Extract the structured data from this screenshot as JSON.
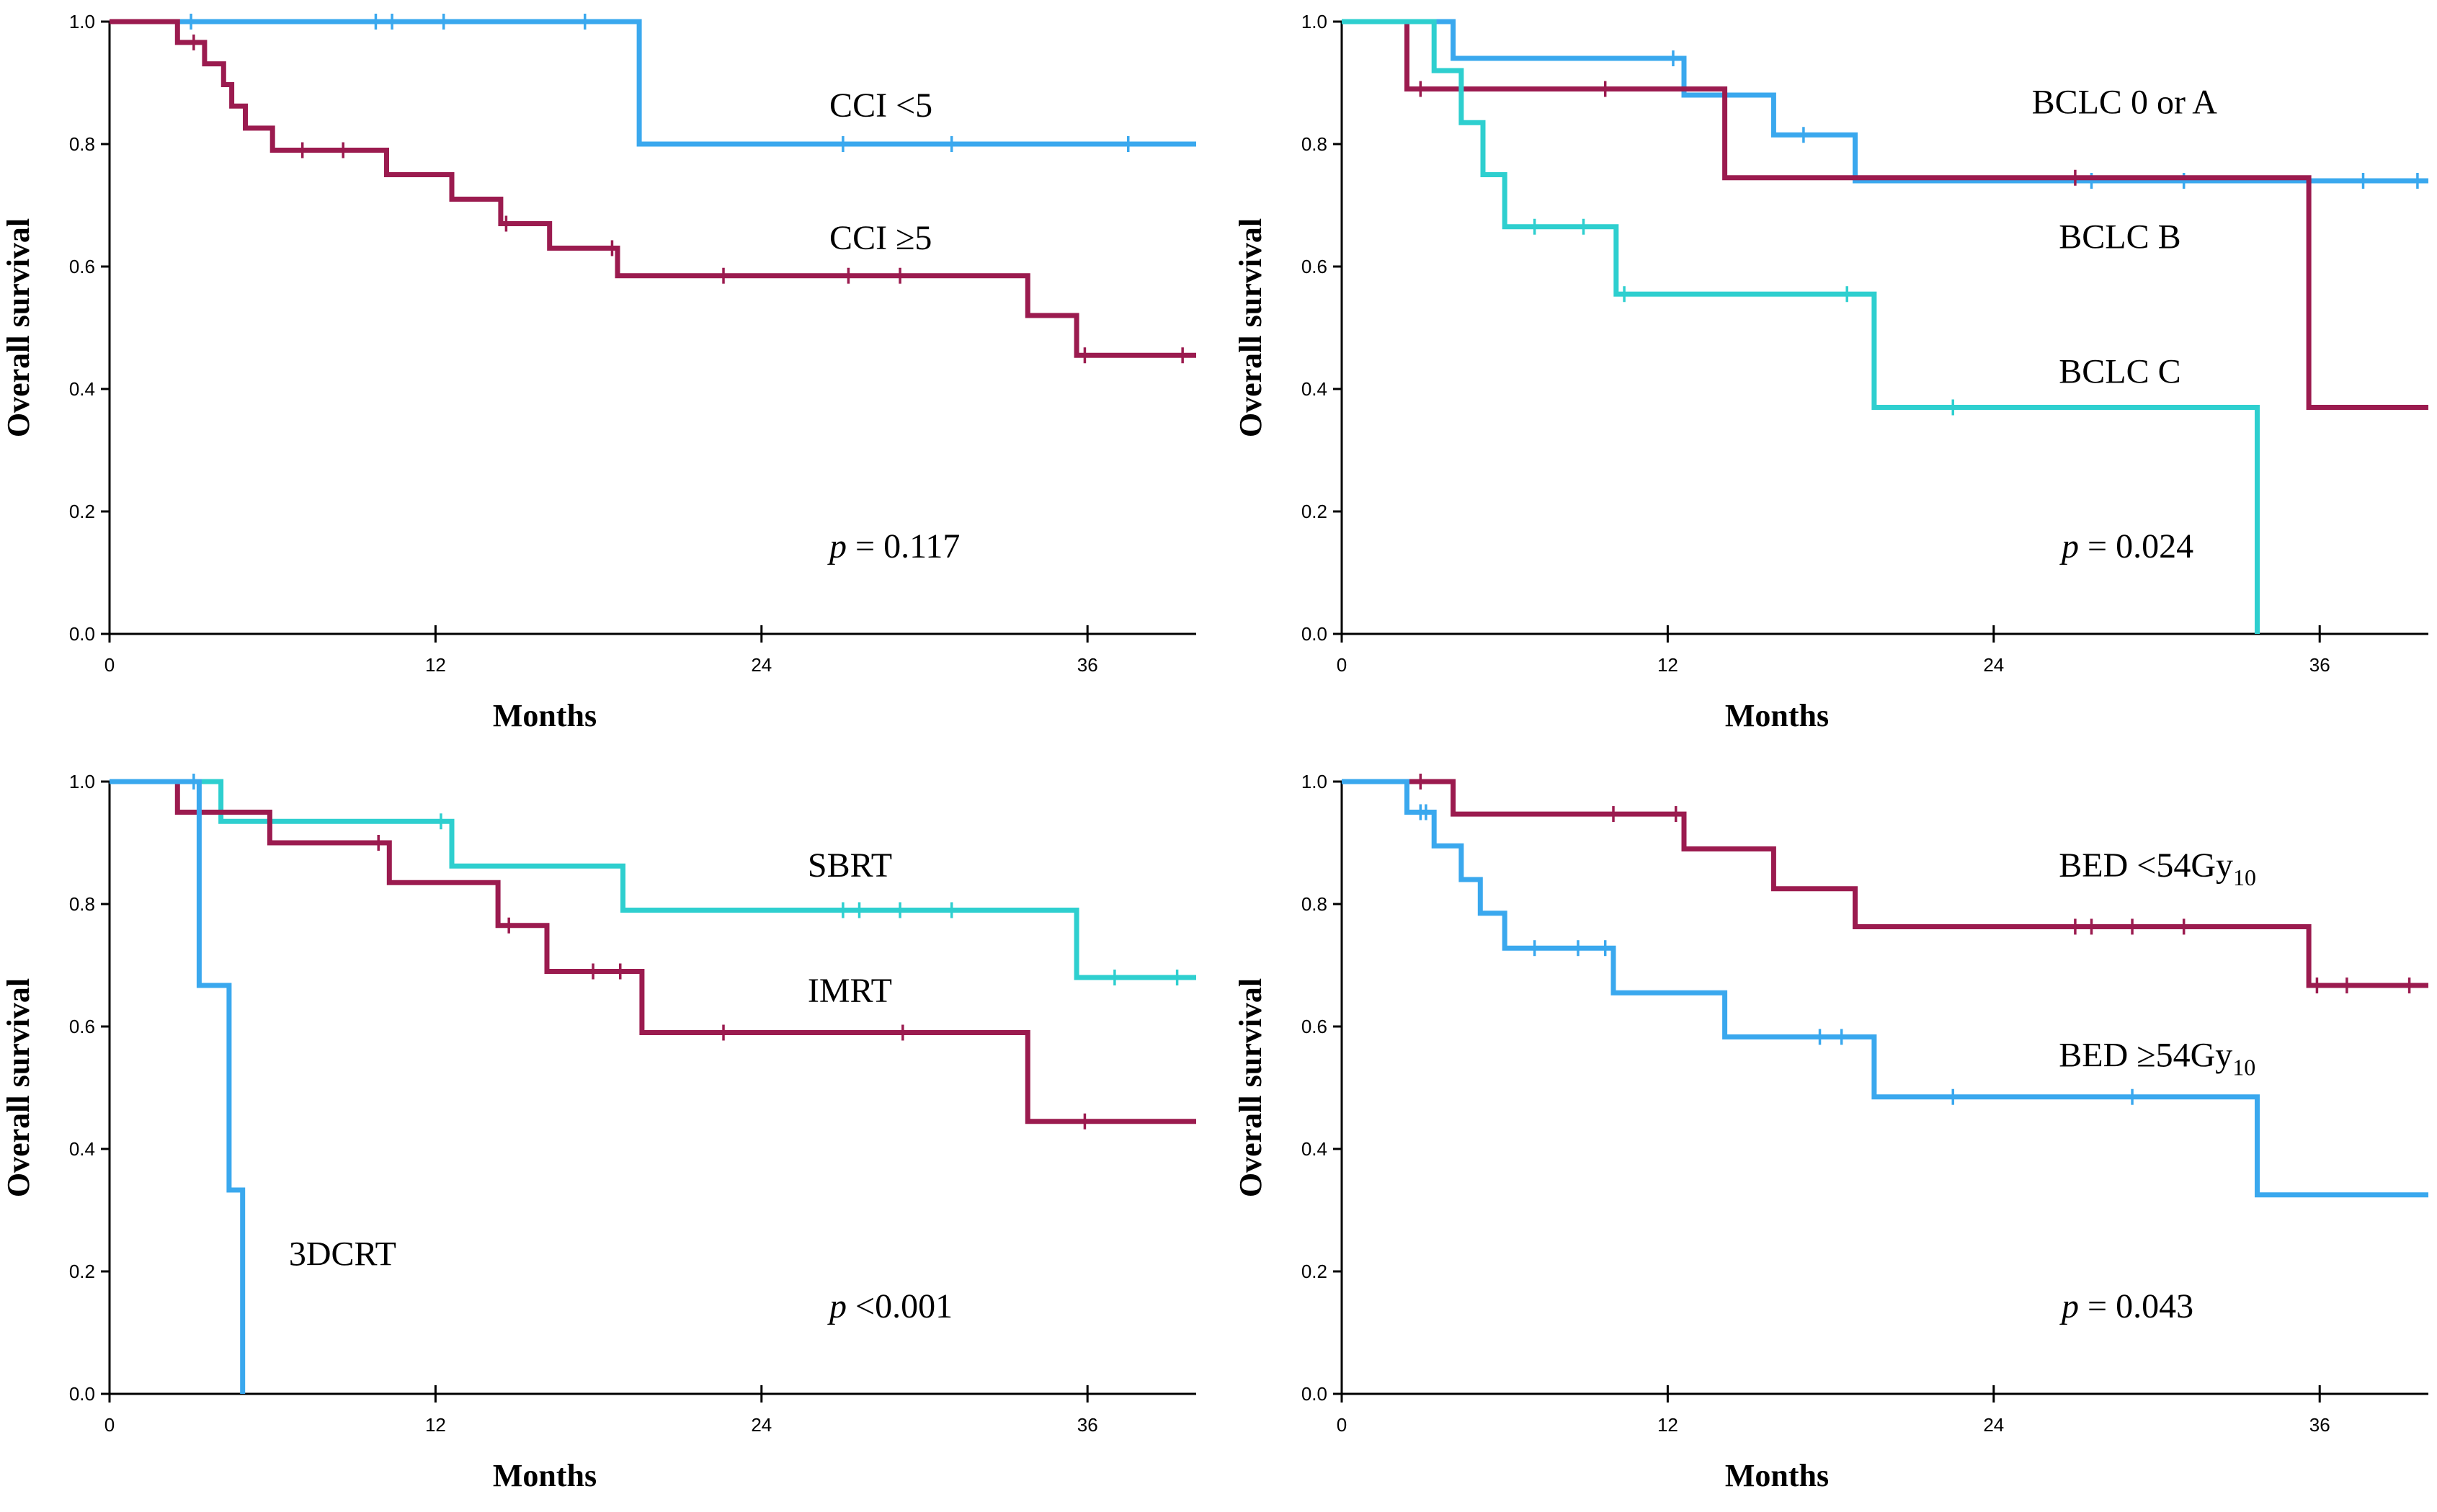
{
  "chart_data": [
    {
      "id": "panel_cci",
      "type": "line",
      "subtype": "kaplan-meier",
      "ylabel": "Overall survival",
      "xlabel": "Months",
      "xlim": [
        0,
        40
      ],
      "ylim": [
        0,
        1
      ],
      "xticks": [
        "0",
        "12",
        "24",
        "36"
      ],
      "yticks": [
        "0.0",
        "0.2",
        "0.4",
        "0.6",
        "0.8",
        "1.0"
      ],
      "pvalue": {
        "p": "p",
        "rest": " = 0.117"
      },
      "series": [
        {
          "name": "CCI <5",
          "label": "CCI <5",
          "sub": "",
          "color": "#3AA8EE",
          "steps": [
            [
              0,
              1.0
            ],
            [
              19.5,
              0.8
            ],
            [
              40,
              0.8
            ]
          ],
          "censors": [
            [
              3,
              1.0
            ],
            [
              9.8,
              1.0
            ],
            [
              10.4,
              1.0
            ],
            [
              12.3,
              1.0
            ],
            [
              17.5,
              1.0
            ],
            [
              27,
              0.8
            ],
            [
              31,
              0.8
            ],
            [
              37.5,
              0.8
            ]
          ],
          "label_pos": [
            26.5,
            0.845
          ]
        },
        {
          "name": "CCI ≥5",
          "label": "CCI ≥5",
          "sub": "",
          "color": "#9B1B4F",
          "steps": [
            [
              0,
              1.0
            ],
            [
              2.5,
              0.966
            ],
            [
              3.5,
              0.931
            ],
            [
              4.2,
              0.897
            ],
            [
              4.5,
              0.862
            ],
            [
              5.0,
              0.826
            ],
            [
              6.0,
              0.79
            ],
            [
              10.2,
              0.75
            ],
            [
              12.6,
              0.71
            ],
            [
              14.4,
              0.67
            ],
            [
              16.2,
              0.63
            ],
            [
              18.7,
              0.585
            ],
            [
              33.8,
              0.52
            ],
            [
              35.6,
              0.455
            ],
            [
              40,
              0.455
            ]
          ],
          "censors": [
            [
              3.1,
              0.966
            ],
            [
              7.1,
              0.79
            ],
            [
              8.6,
              0.79
            ],
            [
              14.6,
              0.67
            ],
            [
              18.5,
              0.63
            ],
            [
              22.6,
              0.585
            ],
            [
              27.2,
              0.585
            ],
            [
              29.1,
              0.585
            ],
            [
              35.9,
              0.455
            ],
            [
              39.5,
              0.455
            ]
          ],
          "label_pos": [
            26.5,
            0.628
          ]
        }
      ]
    },
    {
      "id": "panel_bclc",
      "type": "line",
      "subtype": "kaplan-meier",
      "ylabel": "Overall survival",
      "xlabel": "Months",
      "xlim": [
        0,
        40
      ],
      "ylim": [
        0,
        1
      ],
      "xticks": [
        "0",
        "12",
        "24",
        "36"
      ],
      "yticks": [
        "0.0",
        "0.2",
        "0.4",
        "0.6",
        "0.8",
        "1.0"
      ],
      "pvalue": {
        "p": "p",
        "rest": " = 0.024"
      },
      "series": [
        {
          "name": "BCLC 0 or A",
          "label": "BCLC 0 or A",
          "sub": "",
          "color": "#3AA8EE",
          "steps": [
            [
              0,
              1.0
            ],
            [
              4.1,
              0.94
            ],
            [
              12.6,
              0.88
            ],
            [
              15.9,
              0.815
            ],
            [
              18.9,
              0.74
            ],
            [
              40,
              0.74
            ]
          ],
          "censors": [
            [
              12.2,
              0.94
            ],
            [
              17.0,
              0.815
            ],
            [
              27.6,
              0.74
            ],
            [
              31.0,
              0.74
            ],
            [
              37.6,
              0.74
            ],
            [
              39.6,
              0.74
            ]
          ],
          "label_pos": [
            25.4,
            0.85
          ]
        },
        {
          "name": "BCLC B",
          "label": "BCLC B",
          "sub": "",
          "color": "#9B1B4F",
          "steps": [
            [
              0,
              1.0
            ],
            [
              2.4,
              0.89
            ],
            [
              14.1,
              0.745
            ],
            [
              35.6,
              0.37
            ],
            [
              40,
              0.37
            ]
          ],
          "censors": [
            [
              2.9,
              0.89
            ],
            [
              9.7,
              0.89
            ],
            [
              27.0,
              0.745
            ]
          ],
          "label_pos": [
            26.4,
            0.63
          ]
        },
        {
          "name": "BCLC C",
          "label": "BCLC C",
          "sub": "",
          "color": "#2ECFCF",
          "steps": [
            [
              0,
              1.0
            ],
            [
              3.4,
              0.92
            ],
            [
              4.4,
              0.835
            ],
            [
              5.2,
              0.75
            ],
            [
              6.0,
              0.665
            ],
            [
              10.1,
              0.555
            ],
            [
              19.6,
              0.37
            ],
            [
              33.7,
              0.0
            ]
          ],
          "censors": [
            [
              7.1,
              0.665
            ],
            [
              8.9,
              0.665
            ],
            [
              10.4,
              0.555
            ],
            [
              18.6,
              0.555
            ],
            [
              22.5,
              0.37
            ]
          ],
          "label_pos": [
            26.4,
            0.41
          ]
        }
      ]
    },
    {
      "id": "panel_technique",
      "type": "line",
      "subtype": "kaplan-meier",
      "ylabel": "Overall survival",
      "xlabel": "Months",
      "xlim": [
        0,
        40
      ],
      "ylim": [
        0,
        1
      ],
      "xticks": [
        "0",
        "12",
        "24",
        "36"
      ],
      "yticks": [
        "0.0",
        "0.2",
        "0.4",
        "0.6",
        "0.8",
        "1.0"
      ],
      "pvalue": {
        "p": "p",
        "rest": " <0.001"
      },
      "series": [
        {
          "name": "SBRT",
          "label": "SBRT",
          "sub": "",
          "color": "#2ECFCF",
          "steps": [
            [
              0,
              1.0
            ],
            [
              4.1,
              0.935
            ],
            [
              12.6,
              0.862
            ],
            [
              18.9,
              0.79
            ],
            [
              35.6,
              0.68
            ],
            [
              40,
              0.68
            ]
          ],
          "censors": [
            [
              12.2,
              0.935
            ],
            [
              27.0,
              0.79
            ],
            [
              27.6,
              0.79
            ],
            [
              29.1,
              0.79
            ],
            [
              31.0,
              0.79
            ],
            [
              37.0,
              0.68
            ],
            [
              39.3,
              0.68
            ]
          ],
          "label_pos": [
            25.7,
            0.845
          ]
        },
        {
          "name": "IMRT",
          "label": "IMRT",
          "sub": "",
          "color": "#9B1B4F",
          "steps": [
            [
              0,
              1.0
            ],
            [
              2.5,
              0.95
            ],
            [
              5.9,
              0.9
            ],
            [
              10.3,
              0.835
            ],
            [
              14.3,
              0.765
            ],
            [
              16.1,
              0.69
            ],
            [
              19.6,
              0.59
            ],
            [
              33.8,
              0.445
            ],
            [
              40,
              0.445
            ]
          ],
          "censors": [
            [
              9.9,
              0.9
            ],
            [
              14.7,
              0.765
            ],
            [
              17.8,
              0.69
            ],
            [
              18.8,
              0.69
            ],
            [
              22.6,
              0.59
            ],
            [
              29.2,
              0.59
            ],
            [
              35.9,
              0.445
            ]
          ],
          "label_pos": [
            25.7,
            0.64
          ]
        },
        {
          "name": "3DCRT",
          "label": "3DCRT",
          "sub": "",
          "color": "#3AA8EE",
          "steps": [
            [
              0,
              1.0
            ],
            [
              3.3,
              0.667
            ],
            [
              4.4,
              0.333
            ],
            [
              4.9,
              0.0
            ]
          ],
          "censors": [
            [
              3.1,
              1.0
            ]
          ],
          "label_pos": [
            6.6,
            0.21
          ]
        }
      ]
    },
    {
      "id": "panel_bed",
      "type": "line",
      "subtype": "kaplan-meier",
      "ylabel": "Overall survival",
      "xlabel": "Months",
      "xlim": [
        0,
        40
      ],
      "ylim": [
        0,
        1
      ],
      "xticks": [
        "0",
        "12",
        "24",
        "36"
      ],
      "yticks": [
        "0.0",
        "0.2",
        "0.4",
        "0.6",
        "0.8",
        "1.0"
      ],
      "pvalue": {
        "p": "p",
        "rest": " = 0.043"
      },
      "series": [
        {
          "name": "BED <54Gy10",
          "label": "BED <54Gy",
          "sub": "10",
          "color": "#9B1B4F",
          "steps": [
            [
              0,
              1.0
            ],
            [
              4.1,
              0.947
            ],
            [
              12.6,
              0.89
            ],
            [
              15.9,
              0.825
            ],
            [
              18.9,
              0.763
            ],
            [
              35.6,
              0.667
            ],
            [
              40,
              0.667
            ]
          ],
          "censors": [
            [
              2.9,
              1.0
            ],
            [
              10.0,
              0.947
            ],
            [
              12.3,
              0.947
            ],
            [
              27.0,
              0.763
            ],
            [
              27.6,
              0.763
            ],
            [
              29.1,
              0.763
            ],
            [
              31.0,
              0.763
            ],
            [
              35.9,
              0.667
            ],
            [
              37.0,
              0.667
            ],
            [
              39.3,
              0.667
            ]
          ],
          "label_pos": [
            26.4,
            0.845
          ]
        },
        {
          "name": "BED ≥54Gy10",
          "label": "BED ≥54Gy",
          "sub": "10",
          "color": "#3AA8EE",
          "steps": [
            [
              0,
              1.0
            ],
            [
              2.4,
              0.95
            ],
            [
              3.4,
              0.895
            ],
            [
              4.4,
              0.84
            ],
            [
              5.1,
              0.785
            ],
            [
              6.0,
              0.728
            ],
            [
              10.0,
              0.655
            ],
            [
              14.1,
              0.583
            ],
            [
              19.6,
              0.485
            ],
            [
              33.7,
              0.325
            ],
            [
              40,
              0.325
            ]
          ],
          "censors": [
            [
              2.9,
              0.95
            ],
            [
              3.1,
              0.95
            ],
            [
              7.1,
              0.728
            ],
            [
              8.7,
              0.728
            ],
            [
              9.7,
              0.728
            ],
            [
              17.6,
              0.583
            ],
            [
              18.4,
              0.583
            ],
            [
              22.5,
              0.485
            ],
            [
              29.1,
              0.485
            ]
          ],
          "label_pos": [
            26.4,
            0.535
          ]
        }
      ]
    }
  ]
}
